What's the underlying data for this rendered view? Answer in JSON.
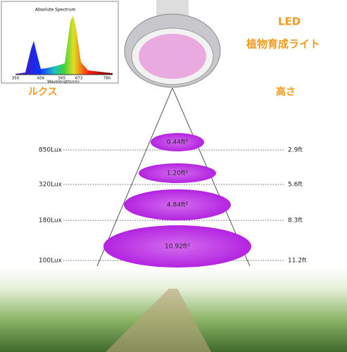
{
  "spectrum": {
    "title": "Absolute Spectrum",
    "x_label": "Wavelength(nm)",
    "x_ticks": [
      "350",
      "456",
      "565",
      "673",
      "780"
    ]
  },
  "header": {
    "title": "LED",
    "subtitle": "植物育成ライト"
  },
  "axis_labels": {
    "left": "ルクス",
    "right": "高さ"
  },
  "rows": [
    {
      "lux": "850Lux",
      "area": "0.44ft²",
      "height": "2.9ft"
    },
    {
      "lux": "320Lux",
      "area": "1.20ft²",
      "height": "5.6ft"
    },
    {
      "lux": "180Lux",
      "area": "4.84ft²",
      "height": "8.3ft"
    },
    {
      "lux": "100Lux",
      "area": "10.92ft²",
      "height": "11.2ft"
    }
  ]
}
